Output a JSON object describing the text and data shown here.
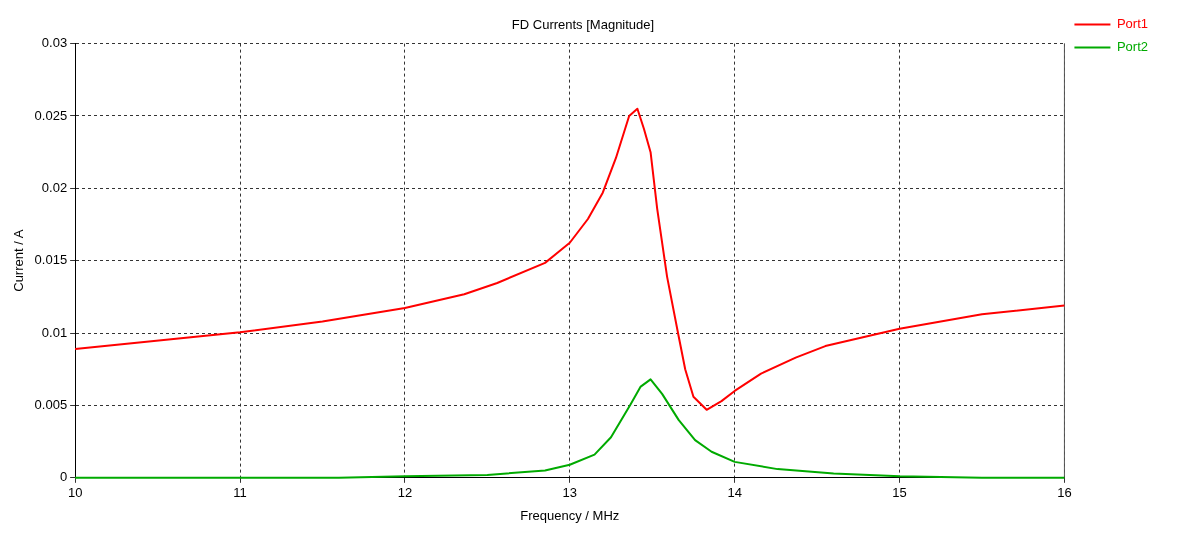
{
  "chart_data": {
    "type": "line",
    "title": "FD Currents [Magnitude]",
    "xlabel": "Frequency / MHz",
    "ylabel": "Current / A",
    "xlim": [
      10,
      16
    ],
    "xticks": [
      10,
      11,
      12,
      13,
      14,
      15,
      16
    ],
    "ylim": [
      0,
      0.03
    ],
    "yticks": [
      0,
      0.005,
      0.01,
      0.015,
      0.02,
      0.025,
      0.03
    ],
    "grid": true,
    "legend": "top right",
    "marker": "none",
    "line_style": "solid",
    "series": [
      {
        "name": "Port1",
        "color": "#ff0000",
        "x": [
          10,
          11,
          11.5,
          12,
          12.36,
          12.56,
          12.85,
          13,
          13.11,
          13.2,
          13.28,
          13.36,
          13.41,
          13.45,
          13.49,
          13.53,
          13.59,
          13.66,
          13.7,
          13.75,
          13.83,
          13.92,
          14,
          14.16,
          14.37,
          14.55,
          15,
          15.5,
          16
        ],
        "values": [
          0.0089,
          0.01005,
          0.0108,
          0.01173,
          0.01268,
          0.01346,
          0.01485,
          0.01624,
          0.01788,
          0.0197,
          0.0221,
          0.025,
          0.0255,
          0.0241,
          0.0225,
          0.0186,
          0.0139,
          0.0098,
          0.0075,
          0.0056,
          0.0047,
          0.0053,
          0.006,
          0.0072,
          0.0083,
          0.0091,
          0.0103,
          0.0113,
          0.0119
        ]
      },
      {
        "name": "Port2",
        "color": "#00aa00",
        "x": [
          10,
          11.6,
          12,
          12.5,
          12.85,
          13,
          13.15,
          13.25,
          13.37,
          13.43,
          13.49,
          13.56,
          13.66,
          13.76,
          13.86,
          14,
          14.26,
          14.6,
          15,
          15.5,
          16
        ],
        "values": [
          0,
          0,
          0.0001,
          0.0002,
          0.0005,
          0.0009,
          0.0016,
          0.0028,
          0.0051,
          0.0063,
          0.0068,
          0.0058,
          0.004,
          0.0026,
          0.0018,
          0.0011,
          0.0006,
          0.0003,
          0.0001,
          0,
          0
        ]
      }
    ]
  }
}
